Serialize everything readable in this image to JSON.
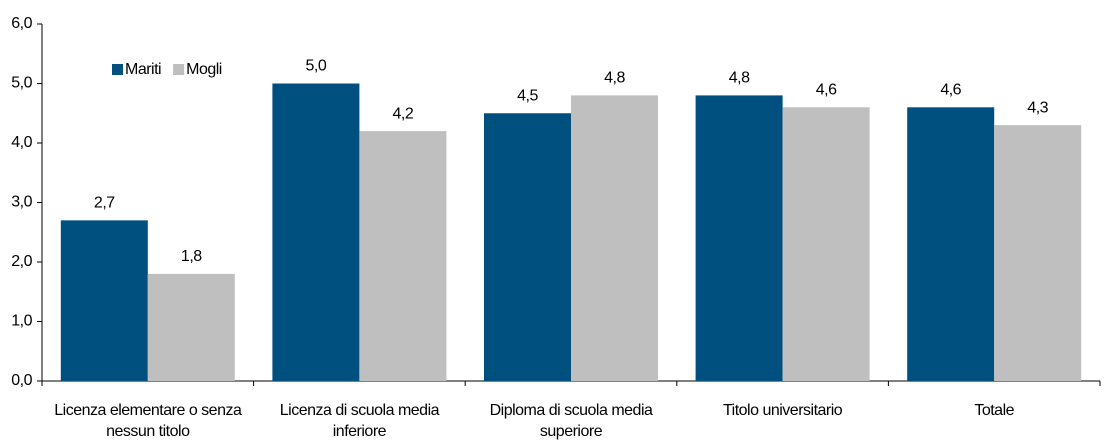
{
  "chart_data": {
    "type": "bar",
    "categories": [
      "Licenza elementare o senza nessun titolo",
      "Licenza di scuola media inferiore",
      "Diploma di scuola media superiore",
      "Titolo universitario",
      "Totale"
    ],
    "series": [
      {
        "name": "Mariti",
        "color": "#00507f",
        "values": [
          2.7,
          5.0,
          4.5,
          4.8,
          4.6
        ],
        "value_labels": [
          "2,7",
          "5,0",
          "4,5",
          "4,8",
          "4,6"
        ]
      },
      {
        "name": "Mogli",
        "color": "#bfbfbf",
        "values": [
          1.8,
          4.2,
          4.8,
          4.6,
          4.3
        ],
        "value_labels": [
          "1,8",
          "4,2",
          "4,8",
          "4,6",
          "4,3"
        ]
      }
    ],
    "ylim": [
      0,
      6
    ],
    "yticks": [
      {
        "value": 0,
        "label": "0,0"
      },
      {
        "value": 1,
        "label": "1,0"
      },
      {
        "value": 2,
        "label": "2,0"
      },
      {
        "value": 3,
        "label": "3,0"
      },
      {
        "value": 4,
        "label": "4,0"
      },
      {
        "value": 5,
        "label": "5,0"
      },
      {
        "value": 6,
        "label": "6,0"
      }
    ],
    "grid": false,
    "legend": "top-left"
  }
}
